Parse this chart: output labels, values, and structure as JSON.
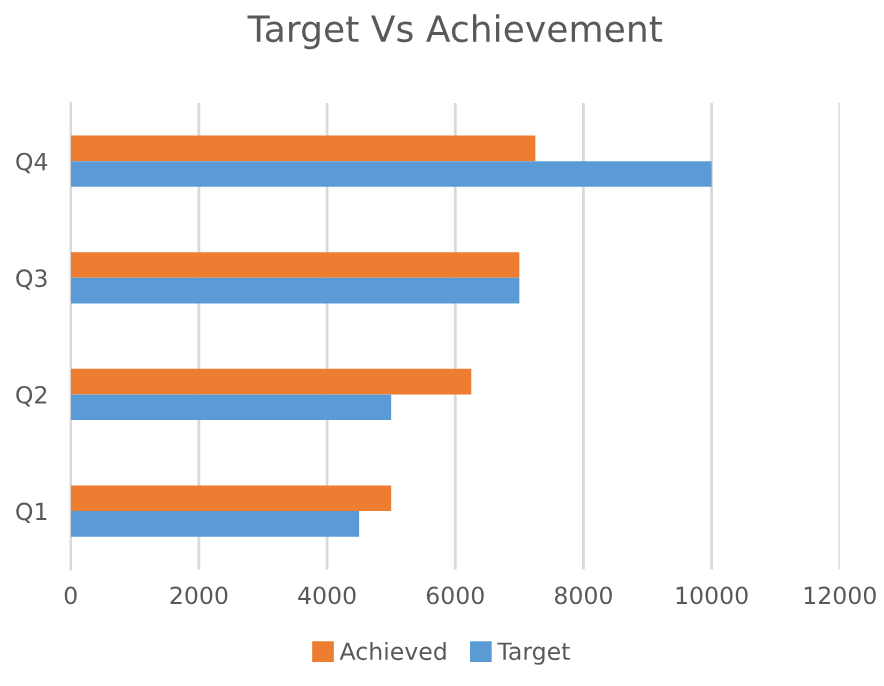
{
  "chart_data": {
    "type": "bar",
    "orientation": "horizontal",
    "title": "Target Vs Achievement",
    "categories": [
      "Q4",
      "Q3",
      "Q2",
      "Q1"
    ],
    "series": [
      {
        "name": "Achieved",
        "color": "#ed7d31",
        "values": [
          7250,
          7000,
          6250,
          5000
        ]
      },
      {
        "name": "Target",
        "color": "#5b9bd5",
        "values": [
          10000,
          7000,
          5000,
          4500
        ]
      }
    ],
    "xlim": [
      0,
      12000
    ],
    "xticks": [
      0,
      2000,
      4000,
      6000,
      8000,
      10000,
      12000
    ],
    "grid": "x",
    "legend": "bottom"
  }
}
